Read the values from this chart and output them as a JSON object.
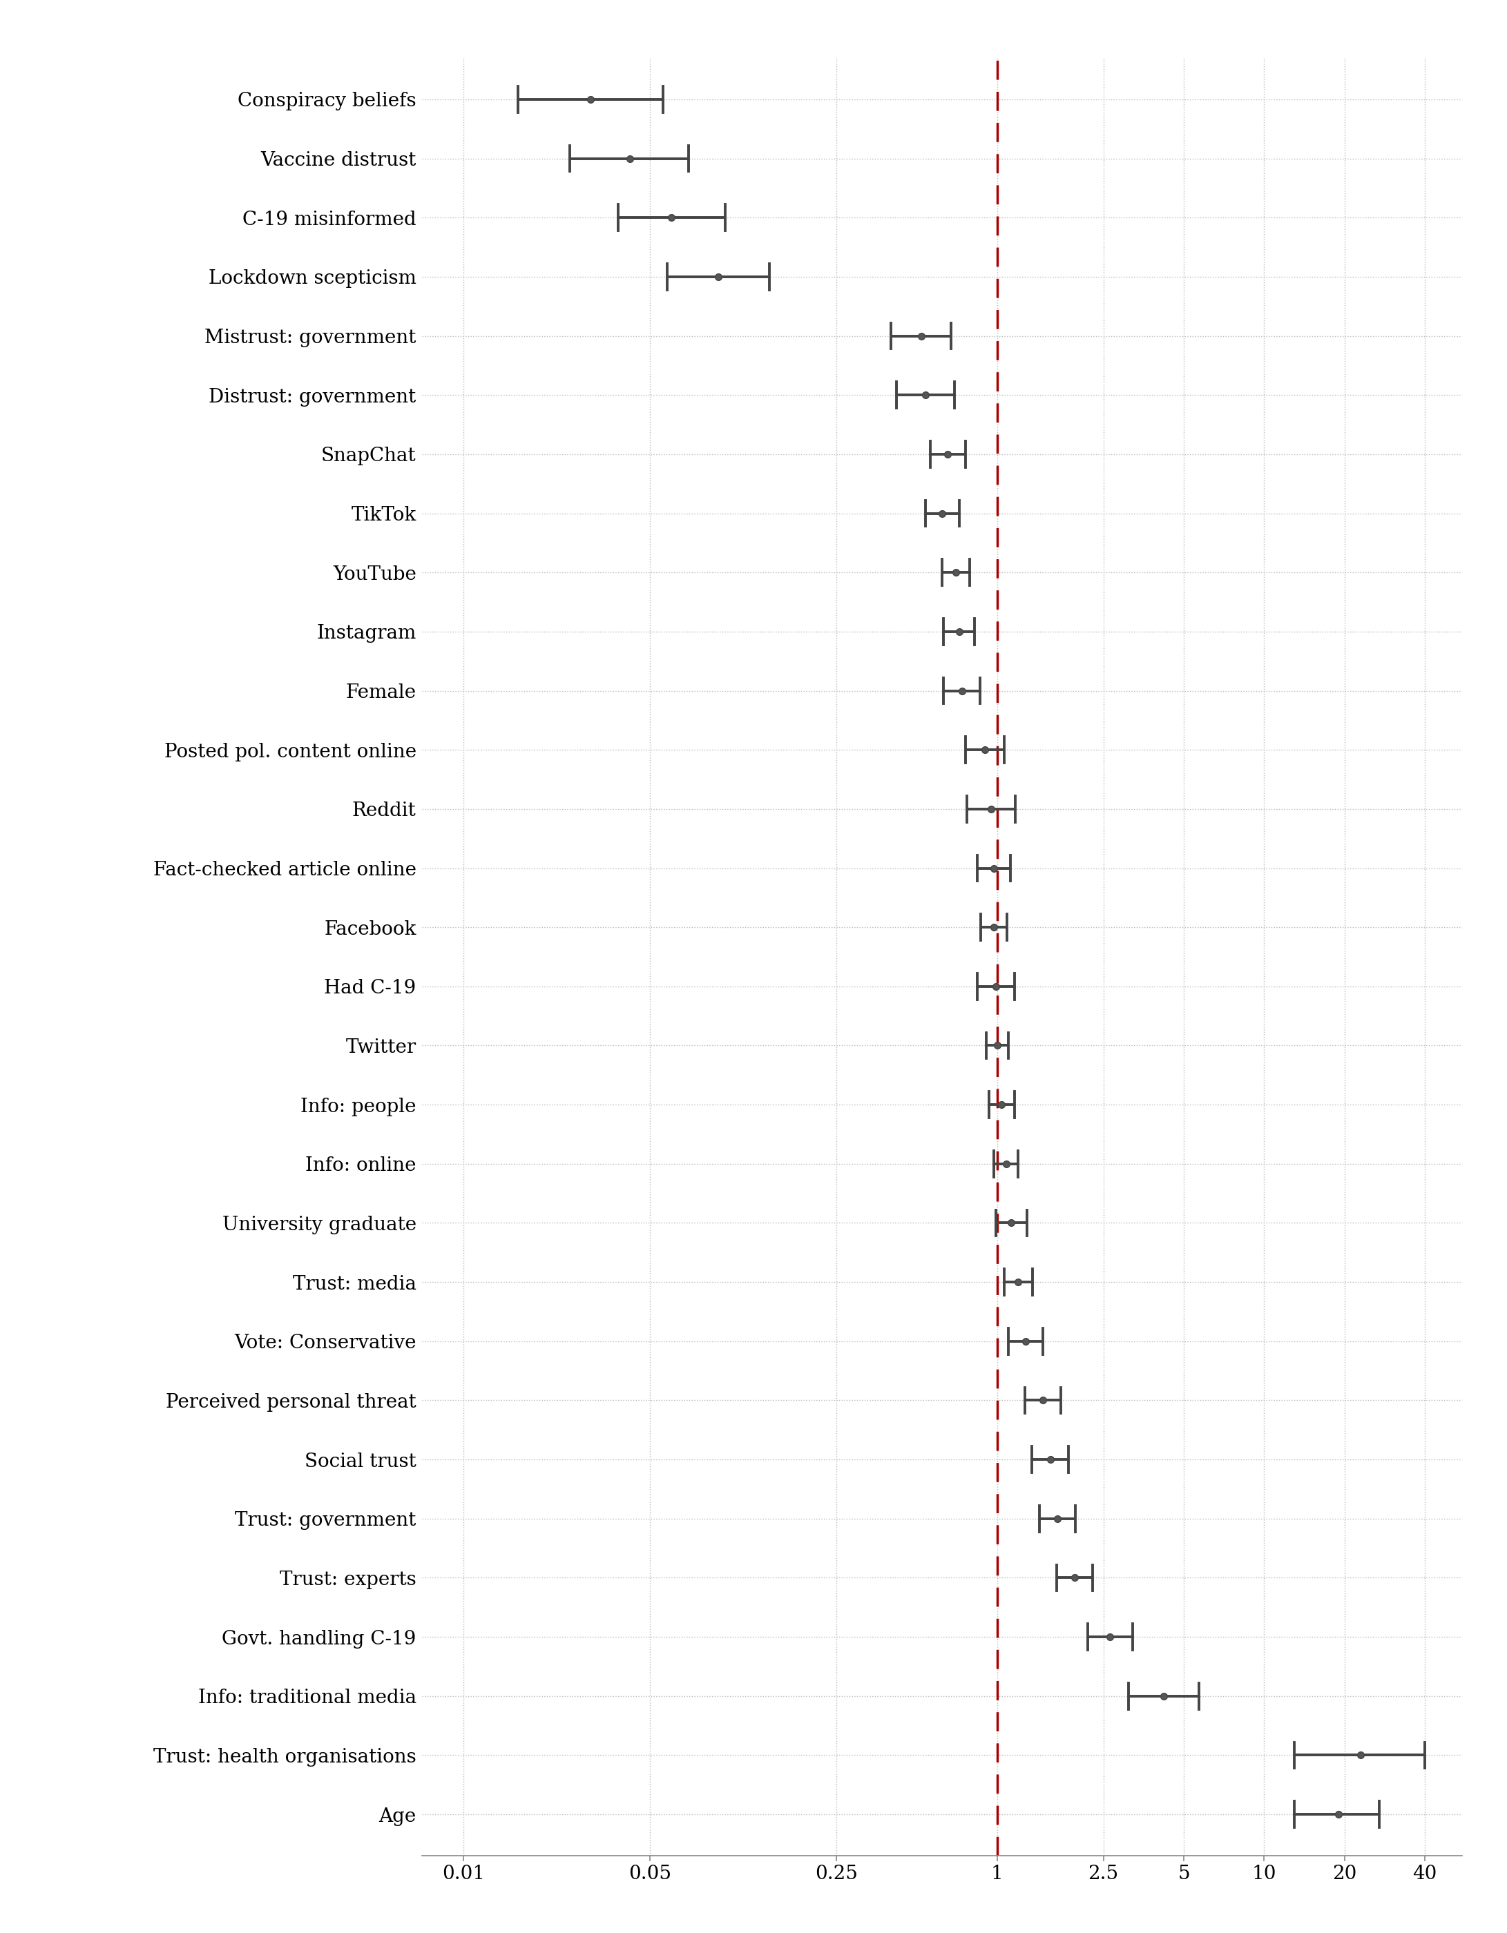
{
  "labels": [
    "Conspiracy beliefs",
    "Vaccine distrust",
    "C-19 misinformed",
    "Lockdown scepticism",
    "Mistrust: government",
    "Distrust: government",
    "SnapChat",
    "TikTok",
    "YouTube",
    "Instagram",
    "Female",
    "Posted pol. content online",
    "Reddit",
    "Fact-checked article online",
    "Facebook",
    "Had C-19",
    "Twitter",
    "Info: people",
    "Info: online",
    "University graduate",
    "Trust: media",
    "Vote: Conservative",
    "Perceived personal threat",
    "Social trust",
    "Trust: government",
    "Trust: experts",
    "Govt. handling C-19",
    "Info: traditional media",
    "Trust: health organisations",
    "Age"
  ],
  "estimates": [
    0.03,
    0.042,
    0.06,
    0.09,
    0.52,
    0.54,
    0.65,
    0.62,
    0.7,
    0.72,
    0.74,
    0.9,
    0.95,
    0.97,
    0.97,
    0.99,
    1.0,
    1.04,
    1.08,
    1.13,
    1.2,
    1.28,
    1.48,
    1.58,
    1.68,
    1.95,
    2.65,
    4.2,
    23.0,
    19.0
  ],
  "ci_low": [
    0.016,
    0.025,
    0.038,
    0.058,
    0.4,
    0.42,
    0.56,
    0.54,
    0.62,
    0.63,
    0.63,
    0.76,
    0.77,
    0.84,
    0.87,
    0.84,
    0.91,
    0.93,
    0.97,
    0.99,
    1.06,
    1.1,
    1.27,
    1.35,
    1.44,
    1.67,
    2.18,
    3.1,
    13.0,
    13.0
  ],
  "ci_high": [
    0.056,
    0.07,
    0.096,
    0.14,
    0.67,
    0.69,
    0.76,
    0.72,
    0.79,
    0.82,
    0.86,
    1.06,
    1.17,
    1.12,
    1.09,
    1.16,
    1.1,
    1.16,
    1.2,
    1.29,
    1.36,
    1.48,
    1.73,
    1.85,
    1.96,
    2.28,
    3.22,
    5.7,
    40.0,
    27.0
  ],
  "x_ticks": [
    0.01,
    0.05,
    0.25,
    1,
    2.5,
    5,
    10,
    20,
    40
  ],
  "x_tick_labels": [
    "0.01",
    "0.05",
    "0.25",
    "1",
    "2.5",
    "5",
    "10",
    "20",
    "40"
  ],
  "point_color": "#555555",
  "line_color": "#444444",
  "ref_line_color": "#aa0000",
  "background_color": "#ffffff",
  "grid_color": "#bbbbbb"
}
